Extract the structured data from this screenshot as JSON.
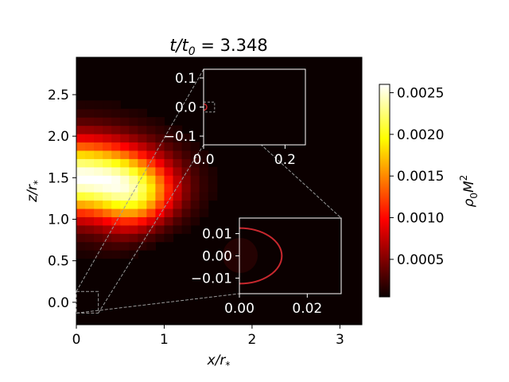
{
  "chart_data": {
    "type": "heatmap",
    "title_base": "t/t",
    "title_sub": "0",
    "title_value": " = 3.348",
    "xlabel_base": "x/r",
    "xlabel_sub": "*",
    "ylabel_base": "z/r",
    "ylabel_sub": "*",
    "colorbar_label_base": "ρ",
    "colorbar_label_sub": "0",
    "colorbar_label_tail": "M",
    "colorbar_label_sup": "2",
    "colormap": "hot",
    "xlim": [
      0,
      3.25
    ],
    "ylim": [
      -0.27,
      2.95
    ],
    "xticks": [
      0,
      1,
      2,
      3
    ],
    "xtick_labels": [
      "0",
      "1",
      "2",
      "3"
    ],
    "yticks": [
      0.0,
      0.5,
      1.0,
      1.5,
      2.0,
      2.5
    ],
    "ytick_labels": [
      "0.0",
      "0.5",
      "1.0",
      "1.5",
      "2.0",
      "2.5"
    ],
    "color_range": [
      5e-05,
      0.0026
    ],
    "colorbar_ticks": [
      0.0005,
      0.001,
      0.0015,
      0.002,
      0.0025
    ],
    "colorbar_tick_labels": [
      "0.0005",
      "0.0010",
      "0.0015",
      "0.0020",
      "0.0025"
    ],
    "density_peak": {
      "x": 0.0,
      "z": 1.5,
      "value": 0.0026
    },
    "insets": [
      {
        "name": "inset-1",
        "xlim": [
          0,
          0.25
        ],
        "ylim": [
          -0.13,
          0.13
        ],
        "xticks": [
          0.0,
          0.2
        ],
        "xtick_labels": [
          "0.0",
          "0.2"
        ],
        "yticks": [
          -0.1,
          0.0,
          0.1
        ],
        "ytick_labels": [
          "−0.1",
          "0.0",
          "0.1"
        ],
        "marked_region": {
          "xlim": [
            0,
            0.027
          ],
          "ylim": [
            -0.017,
            0.017
          ]
        }
      },
      {
        "name": "inset-2",
        "xlim": [
          0,
          0.03
        ],
        "ylim": [
          -0.017,
          0.017
        ],
        "xticks": [
          0.0,
          0.02
        ],
        "xtick_labels": [
          "0.00",
          "0.02"
        ],
        "yticks": [
          -0.01,
          0.0,
          0.01
        ],
        "ytick_labels": [
          "−0.01",
          "0.00",
          "0.01"
        ],
        "circle_radius": 0.0125
      }
    ]
  }
}
